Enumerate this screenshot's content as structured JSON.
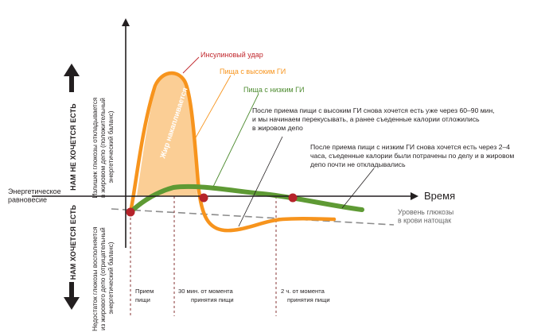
{
  "labels": {
    "time_axis": "Время",
    "energy_balance": [
      "Энергетическое",
      "равновесие"
    ],
    "insulin_spike": "Инсулиновый удар",
    "high_gi_food": "Пища с высоким ГИ",
    "low_gi_food": "Пища с низким ГИ",
    "fat_accumulates": "Жир накапливается",
    "fasting_glucose": [
      "Уровень глюкозы",
      "в крови натощак"
    ],
    "not_hungry": "НАМ НЕ ХОЧЕТСЯ ЕСТЬ",
    "hungry": "НАМ ХОЧЕТСЯ ЕСТЬ",
    "excess_glucose": [
      "Излишек глюкозы откладывается",
      "в жировом депо (положительный",
      "энергетический баланс)"
    ],
    "glucose_deficit": [
      "Недостаток глюкозы восполняется",
      "из жирового депо (отрицательный",
      "энергетический баланс)"
    ]
  },
  "notes": {
    "high_gi_note": [
      "После приема пищи с высоким ГИ снова хочется есть уже через 60–90 мин,",
      "и мы начинаем перекусывать, а ранее съеденные калории отложились",
      "в жировом депо"
    ],
    "low_gi_note": [
      "После приема пищи с низким ГИ снова хочется есть через 2–4",
      "часа, съеденные калории были потрачены по делу и в жировом",
      "депо почти не откладывались"
    ]
  },
  "time_marks": [
    {
      "lines": [
        "Прием",
        "пищи"
      ]
    },
    {
      "lines": [
        "30 мин. от момента",
        "принятия пищи"
      ]
    },
    {
      "lines": [
        "2 ч. от момента",
        "принятия пищи"
      ]
    }
  ],
  "colors": {
    "high_gi_curve": "#f7941d",
    "fat_fill": "#fbc98a",
    "low_gi_curve": "#5e9a34",
    "marker": "#b5232a",
    "axis": "#231f20",
    "dashed_line": "#8c8c8c",
    "label_red": "#c1272d",
    "label_orange": "#f7941d",
    "label_green": "#4d8b2f"
  }
}
